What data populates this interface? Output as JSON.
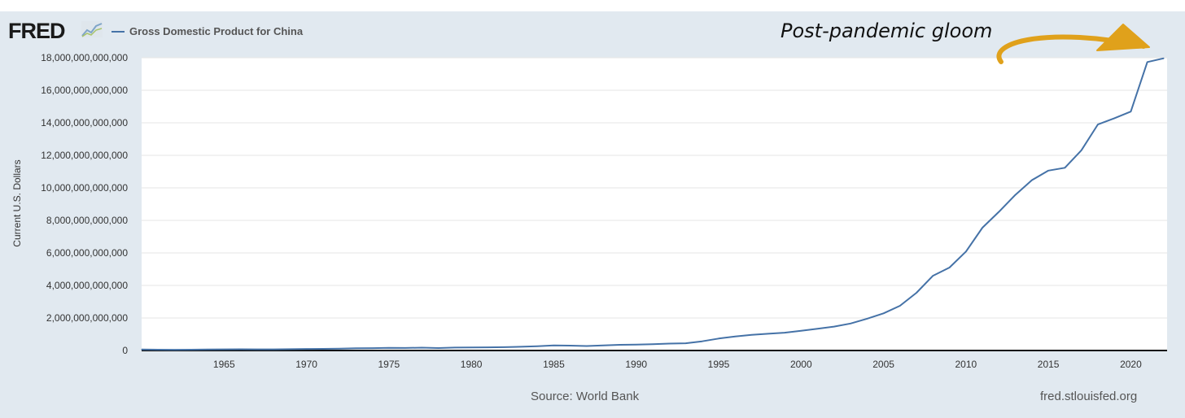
{
  "header": {
    "logo_text": "FRED",
    "legend_label": "Gross Domestic Product for China",
    "annotation": "Post-pandemic gloom"
  },
  "footer": {
    "source": "Source: World Bank",
    "site": "fred.stlouisfed.org"
  },
  "colors": {
    "series": "#4572a7",
    "arrow": "#e0a11b",
    "background": "#e1e9f0"
  },
  "icons": {
    "logo_graph": "chart-line-icon"
  },
  "chart_data": {
    "type": "line",
    "ylabel": "Current U.S. Dollars",
    "xlim": [
      1960,
      2022.2
    ],
    "ylim": [
      0,
      18000000000000
    ],
    "x_ticks": [
      1965,
      1970,
      1975,
      1980,
      1985,
      1990,
      1995,
      2000,
      2005,
      2010,
      2015,
      2020
    ],
    "y_ticks": [
      0,
      2000000000000,
      4000000000000,
      6000000000000,
      8000000000000,
      10000000000000,
      12000000000000,
      14000000000000,
      16000000000000,
      18000000000000
    ],
    "y_tick_labels": [
      "0",
      "2,000,000,000,000",
      "4,000,000,000,000",
      "6,000,000,000,000",
      "8,000,000,000,000",
      "10,000,000,000,000",
      "12,000,000,000,000",
      "14,000,000,000,000",
      "16,000,000,000,000",
      "18,000,000,000,000"
    ],
    "series": [
      {
        "name": "Gross Domestic Product for China",
        "x": [
          1960,
          1961,
          1962,
          1963,
          1964,
          1965,
          1966,
          1967,
          1968,
          1969,
          1970,
          1971,
          1972,
          1973,
          1974,
          1975,
          1976,
          1977,
          1978,
          1979,
          1980,
          1981,
          1982,
          1983,
          1984,
          1985,
          1986,
          1987,
          1988,
          1989,
          1990,
          1991,
          1992,
          1993,
          1994,
          1995,
          1996,
          1997,
          1998,
          1999,
          2000,
          2001,
          2002,
          2003,
          2004,
          2005,
          2006,
          2007,
          2008,
          2009,
          2010,
          2011,
          2012,
          2013,
          2014,
          2015,
          2016,
          2017,
          2018,
          2019,
          2020,
          2021,
          2022
        ],
        "values": [
          59700000000,
          50100000000,
          47200000000,
          50700000000,
          59700000000,
          70400000000,
          76700000000,
          72100000000,
          69999000000,
          78700000000,
          92600000000,
          99800000000,
          113700000000,
          138500000000,
          144200000000,
          163400000000,
          153900000000,
          174900000000,
          149500000000,
          178300000000,
          191100000000,
          195900000000,
          205100000000,
          230700000000,
          259900000000,
          309500000000,
          300800000000,
          272900000000,
          312400000000,
          347800000000,
          360900000000,
          383400000000,
          426900000000,
          444700000000,
          564300000000,
          734500000000,
          863700000000,
          961600000000,
          1029000000000,
          1094000000000,
          1211300000000,
          1339400000000,
          1470600000000,
          1660300000000,
          1955300000000,
          2286000000000,
          2752100000000,
          3550300000000,
          4594300000000,
          5101700000000,
          6087200000000,
          7551500000000,
          8532200000000,
          9570400000000,
          10475700000000,
          11061600000000,
          11233300000000,
          12310400000000,
          13894800000000,
          14279900000000,
          14687700000000,
          17734100000000,
          17963200000000
        ]
      }
    ],
    "grid": true,
    "legend": "top-left"
  }
}
